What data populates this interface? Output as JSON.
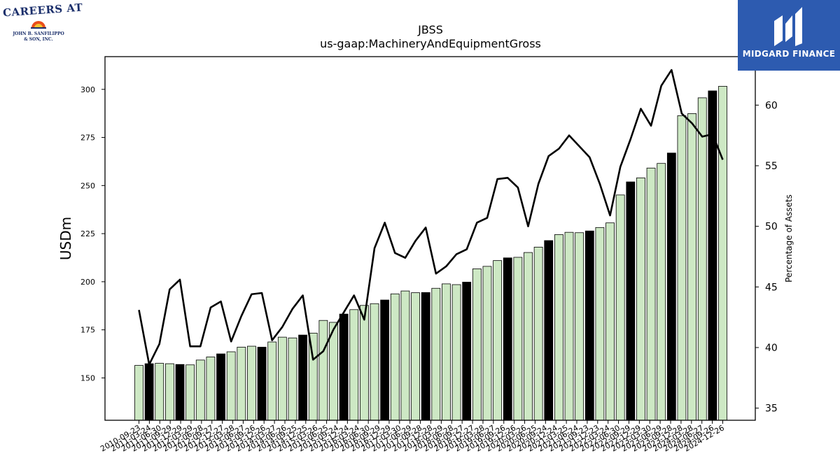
{
  "logos": {
    "left": {
      "line1": "CAREERS AT",
      "line2": "JOHN B. SANFILIPPO",
      "line3": "& SON, INC.",
      "mark_icon": "sunburst-icon"
    },
    "right": {
      "name": "MIDGARD FINANCE",
      "mark_icon": "midgard-m-icon",
      "color": "#2d5bb0"
    }
  },
  "chart_data": {
    "type": "bar",
    "title": "JBSS",
    "subtitle": "us-gaap:MachineryAndEquipmentGross",
    "ylabel": "USDm",
    "y2label": "Percentage of Assets",
    "ylim": [
      128,
      317
    ],
    "y2lim": [
      34,
      64
    ],
    "yticks": [
      150,
      175,
      200,
      225,
      250,
      275,
      300
    ],
    "y2ticks": [
      35,
      40,
      45,
      50,
      55,
      60
    ],
    "colors": {
      "bar_quarter": "#cde8c4",
      "bar_fiscal_year_end": "#000000",
      "line": "#000000"
    },
    "categories": [
      "2010-09-23",
      "2010-12-23",
      "2011-03-24",
      "2011-06-30",
      "2011-09-29",
      "2011-12-29",
      "2012-03-29",
      "2012-06-28",
      "2012-09-27",
      "2012-12-27",
      "2013-03-28",
      "2013-06-27",
      "2013-09-26",
      "2013-12-26",
      "2014-03-27",
      "2014-06-26",
      "2014-09-25",
      "2014-12-25",
      "2015-03-26",
      "2015-06-25",
      "2015-09-24",
      "2015-12-24",
      "2016-03-24",
      "2016-06-30",
      "2016-09-29",
      "2016-12-29",
      "2017-03-30",
      "2017-06-29",
      "2017-09-28",
      "2017-12-28",
      "2018-03-29",
      "2018-06-28",
      "2018-09-27",
      "2018-12-27",
      "2019-03-28",
      "2019-06-27",
      "2019-09-26",
      "2019-12-26",
      "2020-03-26",
      "2020-06-25",
      "2020-09-24",
      "2020-12-24",
      "2021-03-25",
      "2021-06-24",
      "2021-09-23",
      "2021-12-23",
      "2022-03-24",
      "2022-06-30",
      "2022-09-29",
      "2022-12-29",
      "2023-03-30",
      "2023-06-29",
      "2023-09-28",
      "2023-12-28",
      "2024-03-28",
      "2024-06-27",
      "2024-09-26",
      "2024-12-26"
    ],
    "tick_labels": [
      "2010-09-23",
      "2011-03-24",
      "2011-06-30",
      "2011-09-29",
      "2011-12-29",
      "2012-03-29",
      "2012-06-28",
      "2012-09-27",
      "2012-12-27",
      "2013-03-28",
      "2013-06-27",
      "2013-09-26",
      "2013-12-26",
      "2014-03-27",
      "2014-06-26",
      "2014-09-25",
      "2014-12-25",
      "2015-03-26",
      "2015-06-25",
      "2015-09-24",
      "2015-12-24",
      "2016-03-24",
      "2016-06-30",
      "2016-09-29",
      "2016-12-29",
      "2017-03-30",
      "2017-06-29",
      "2017-09-28",
      "2017-12-28",
      "2018-03-29",
      "2018-06-28",
      "2018-09-27",
      "2018-12-27",
      "2019-03-28",
      "2019-06-27",
      "2019-09-26",
      "2019-12-26",
      "2020-03-26",
      "2020-06-25",
      "2020-09-24",
      "2020-12-24",
      "2021-03-25",
      "2021-06-24",
      "2021-09-23",
      "2021-12-23",
      "2022-03-24",
      "2022-06-30",
      "2022-09-29",
      "2022-12-29",
      "2023-03-30",
      "2023-06-29",
      "2023-09-28",
      "2023-12-28",
      "2024-03-28",
      "2024-06-27",
      "2024-09-26",
      "2024-12-26"
    ],
    "series": [
      {
        "values": [
          156.5,
          157.4,
          157.6,
          157.4,
          157.0,
          156.8,
          159.3,
          160.9,
          162.5,
          163.6,
          166.0,
          166.5,
          166.0,
          168.7,
          171.2,
          170.8,
          172.3,
          173.3,
          179.9,
          178.9,
          183.2,
          185.5,
          187.7,
          188.6,
          190.5,
          193.7,
          195.2,
          194.3,
          194.4,
          196.6,
          198.9,
          198.5,
          199.8,
          206.7,
          208.0,
          211.0,
          212.4,
          212.7,
          215.2,
          218.0,
          221.4,
          224.5,
          225.7,
          225.5,
          226.4,
          228.2,
          230.6,
          245.1,
          251.9,
          254.0,
          259.1,
          261.5,
          266.9,
          286.3,
          287.4,
          295.6,
          299.2,
          301.6
        ],
        "fiscal_year_end": [
          false,
          true,
          false,
          false,
          true,
          false,
          false,
          false,
          true,
          false,
          false,
          false,
          true,
          false,
          false,
          false,
          true,
          false,
          false,
          false,
          true,
          false,
          false,
          false,
          true,
          false,
          false,
          false,
          true,
          false,
          false,
          false,
          true,
          false,
          false,
          false,
          true,
          false,
          false,
          false,
          true,
          false,
          false,
          false,
          true,
          false,
          false,
          false,
          true,
          false,
          false,
          false,
          true,
          false,
          false,
          false,
          true,
          false
        ]
      },
      {
        "axis": "right",
        "values": [
          43.1,
          38.6,
          40.3,
          44.8,
          45.6,
          40.1,
          40.1,
          43.3,
          43.8,
          40.5,
          42.6,
          44.4,
          44.5,
          40.6,
          41.7,
          43.2,
          44.3,
          39.0,
          39.7,
          41.5,
          42.9,
          44.3,
          42.3,
          48.2,
          50.3,
          47.8,
          47.4,
          48.8,
          49.9,
          46.1,
          46.7,
          47.7,
          48.1,
          50.3,
          50.7,
          53.9,
          54.0,
          53.2,
          50.0,
          53.5,
          55.8,
          56.4,
          57.5,
          56.6,
          55.7,
          53.5,
          50.9,
          54.9,
          57.2,
          59.7,
          58.3,
          61.6,
          62.9,
          59.3,
          58.5,
          57.4,
          57.6,
          55.5
        ]
      }
    ]
  }
}
